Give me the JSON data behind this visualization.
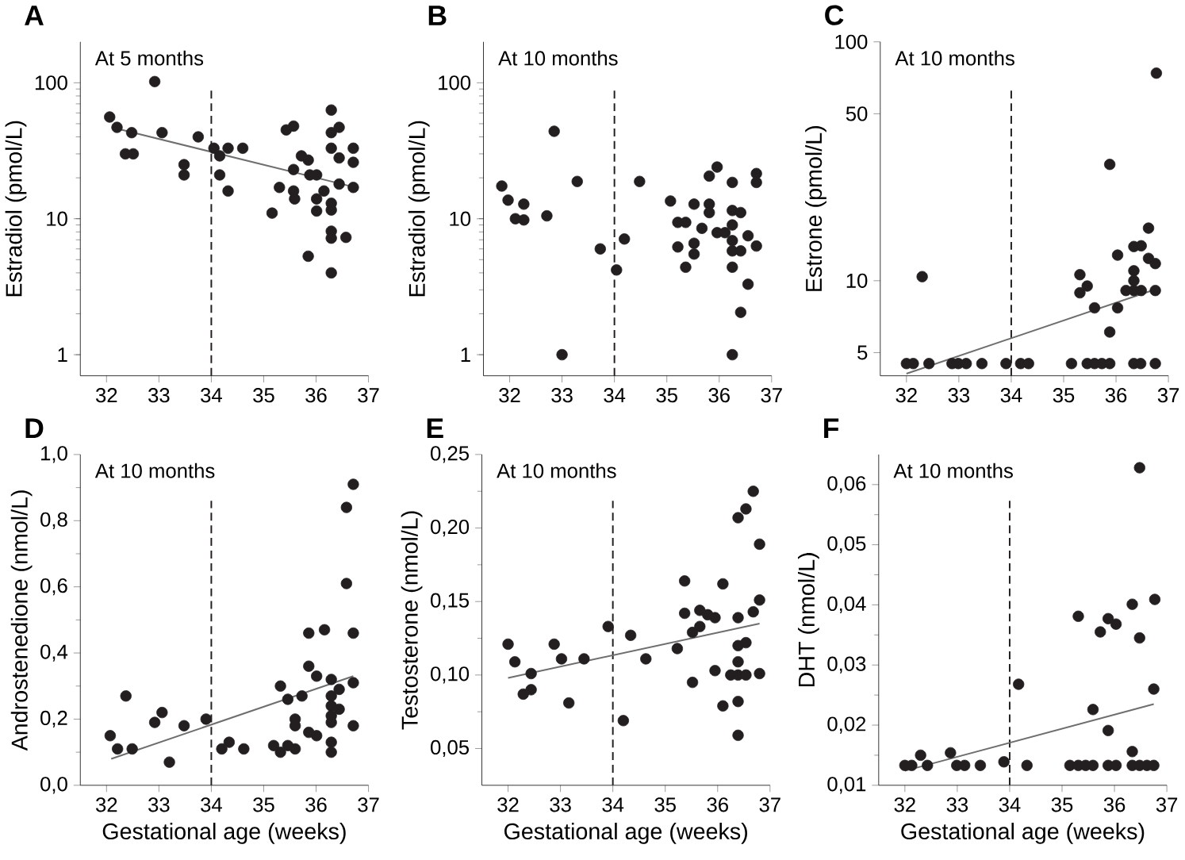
{
  "chart_data": [
    {
      "type": "scatter",
      "title": "A",
      "ylabel": "Estradiol (pmol/L)",
      "annotations": [
        "At 5 months"
      ],
      "log": "y",
      "marker": "circle",
      "xlim": [
        31.5,
        37
      ],
      "xticks": [
        32,
        33,
        34,
        35,
        36,
        37
      ],
      "ylim": [
        0.7,
        200
      ],
      "yticks": [
        1,
        10,
        100
      ],
      "ref_lines": [
        {
          "axis": "x",
          "value": 34,
          "line_style": "dashed",
          "color": "#231f20"
        }
      ],
      "series": [
        {
          "type": "scatter",
          "color": "#231f20",
          "x": [
            32.06,
            32.2,
            32.48,
            32.36,
            32.51,
            32.92,
            33.06,
            33.48,
            33.48,
            33.75,
            34.05,
            34.16,
            34.16,
            34.32,
            34.32,
            34.6,
            35.3,
            35.16,
            35.43,
            35.57,
            35.57,
            35.57,
            35.59,
            35.72,
            35.85,
            35.85,
            35.88,
            36.01,
            36.01,
            36.01,
            36.15,
            36.29,
            36.29,
            36.29,
            36.29,
            36.29,
            36.29,
            36.29,
            36.29,
            36.44,
            36.44,
            36.44,
            36.71,
            36.71,
            36.71,
            36.57
          ],
          "values": [
            56,
            47,
            43,
            30,
            30,
            102,
            43,
            25,
            21,
            40,
            33,
            29,
            21,
            33,
            16,
            33,
            17,
            11,
            45,
            48,
            23,
            16,
            14,
            29,
            27,
            5.3,
            21,
            21,
            14,
            11.4,
            16,
            63,
            43,
            33,
            13,
            11.6,
            8.1,
            7.2,
            4,
            47,
            28,
            18,
            33,
            26,
            17,
            7.3
          ]
        },
        {
          "type": "line",
          "marker": "none",
          "color": "#6e6e6e",
          "x": [
            32.1,
            36.7
          ],
          "values": [
            47,
            17.2
          ]
        }
      ]
    },
    {
      "type": "scatter",
      "title": "B",
      "ylabel": "Estradiol (pmol/L)",
      "annotations": [
        "At 10 months"
      ],
      "log": "y",
      "marker": "circle",
      "xlim": [
        31.5,
        37
      ],
      "xticks": [
        32,
        33,
        34,
        35,
        36,
        37
      ],
      "ylim": [
        0.7,
        200
      ],
      "yticks": [
        1,
        10,
        100
      ],
      "ref_lines": [
        {
          "axis": "x",
          "value": 34,
          "line_style": "dashed",
          "color": "#231f20"
        }
      ],
      "series": [
        {
          "type": "scatter",
          "color": "#231f20",
          "x": [
            31.85,
            31.97,
            32.11,
            32.27,
            32.27,
            32.71,
            32.85,
            33.0,
            33.29,
            33.73,
            34.04,
            34.19,
            34.48,
            35.07,
            35.21,
            35.21,
            35.36,
            35.36,
            35.52,
            35.52,
            35.52,
            35.67,
            35.81,
            35.81,
            35.81,
            35.96,
            35.96,
            36.11,
            36.25,
            36.25,
            36.25,
            36.25,
            36.25,
            36.25,
            36.25,
            36.41,
            36.41,
            36.41,
            36.55,
            36.55,
            36.71,
            36.71,
            36.71
          ],
          "values": [
            17.4,
            13.7,
            10,
            12.8,
            9.8,
            10.5,
            44,
            1,
            18.8,
            6,
            4.2,
            7.1,
            18.8,
            13.5,
            9.4,
            6.2,
            9.4,
            4.4,
            12.8,
            6.6,
            5.5,
            8.5,
            20.6,
            12.8,
            11.1,
            24,
            7.9,
            7.9,
            18.5,
            11.5,
            9,
            6.9,
            5.8,
            4.4,
            1,
            11.1,
            5.8,
            2.05,
            7.5,
            3.3,
            21.5,
            18.5,
            6.3
          ]
        }
      ]
    },
    {
      "type": "scatter",
      "title": "C",
      "ylabel": "Estrone (pmol/L)",
      "annotations": [
        "At 10 months"
      ],
      "log": "y",
      "marker": "circle",
      "xlim": [
        31.5,
        37
      ],
      "xticks": [
        32,
        33,
        34,
        35,
        36,
        37
      ],
      "ylim": [
        4,
        100
      ],
      "yticks": [
        5,
        10,
        50,
        100
      ],
      "ref_lines": [
        {
          "axis": "x",
          "value": 34,
          "line_style": "dashed",
          "color": "#231f20"
        }
      ],
      "series": [
        {
          "type": "scatter",
          "color": "#231f20",
          "x": [
            32.0,
            32.13,
            32.43,
            32.87,
            32.99,
            33.14,
            33.44,
            33.9,
            34.18,
            34.33,
            35.15,
            35.45,
            35.59,
            35.73,
            35.88,
            36.34,
            36.47,
            36.75,
            32.3,
            35.31,
            35.31,
            35.45,
            35.59,
            35.88,
            35.88,
            36.03,
            36.03,
            36.19,
            36.34,
            36.34,
            36.34,
            36.48,
            36.34,
            36.62,
            36.62,
            36.75,
            36.75,
            36.77,
            36.48
          ],
          "values": [
            4.5,
            4.5,
            4.5,
            4.5,
            4.5,
            4.5,
            4.5,
            4.5,
            4.5,
            4.5,
            4.5,
            4.5,
            4.5,
            4.5,
            4.5,
            4.5,
            4.5,
            4.5,
            10.4,
            10.6,
            8.9,
            9.5,
            7.7,
            30.7,
            6.1,
            12.8,
            7.7,
            9.1,
            11,
            10,
            13.9,
            14,
            9.1,
            16.6,
            12.4,
            11.8,
            9.1,
            74,
            9.1
          ]
        },
        {
          "type": "line",
          "marker": "none",
          "color": "#6e6e6e",
          "x": [
            32.0,
            36.75
          ],
          "values": [
            4.08,
            9.2
          ]
        }
      ]
    },
    {
      "type": "scatter",
      "title": "D",
      "xlabel": "Gestational age (weeks)",
      "ylabel": "Androstenedione (nmol/L)",
      "annotations": [
        "At 10 months"
      ],
      "marker": "circle",
      "xlim": [
        31.5,
        37
      ],
      "xticks": [
        32,
        33,
        34,
        35,
        36,
        37
      ],
      "ylim": [
        0,
        1
      ],
      "yticks": [
        {
          "value": 0,
          "label": "0,0"
        },
        {
          "value": 0.2,
          "label": "0,2"
        },
        {
          "value": 0.4,
          "label": "0,4"
        },
        {
          "value": 0.6,
          "label": "0,6"
        },
        {
          "value": 0.8,
          "label": "0,8"
        },
        {
          "value": 1,
          "label": "1,0"
        }
      ],
      "ref_lines": [
        {
          "axis": "x",
          "value": 34,
          "line_style": "dashed",
          "color": "#231f20"
        }
      ],
      "series": [
        {
          "type": "scatter",
          "color": "#231f20",
          "x": [
            32.07,
            32.21,
            32.37,
            32.49,
            32.92,
            33.06,
            33.2,
            33.48,
            33.9,
            34.2,
            34.34,
            34.62,
            35.19,
            35.32,
            35.32,
            35.46,
            35.46,
            35.6,
            35.6,
            35.6,
            35.73,
            35.86,
            35.86,
            35.86,
            36.01,
            36.01,
            36.16,
            36.29,
            36.29,
            36.29,
            36.29,
            36.29,
            36.29,
            36.29,
            36.44,
            36.44,
            36.58,
            36.58,
            36.71,
            36.71,
            36.71,
            36.71
          ],
          "values": [
            0.15,
            0.11,
            0.27,
            0.11,
            0.19,
            0.22,
            0.07,
            0.18,
            0.2,
            0.11,
            0.13,
            0.11,
            0.12,
            0.3,
            0.1,
            0.26,
            0.12,
            0.2,
            0.18,
            0.11,
            0.27,
            0.46,
            0.36,
            0.16,
            0.33,
            0.15,
            0.47,
            0.32,
            0.27,
            0.24,
            0.21,
            0.19,
            0.13,
            0.1,
            0.29,
            0.23,
            0.84,
            0.61,
            0.91,
            0.46,
            0.31,
            0.18
          ]
        },
        {
          "type": "line",
          "marker": "none",
          "color": "#6e6e6e",
          "x": [
            32.09,
            36.71
          ],
          "values": [
            0.08,
            0.33
          ]
        }
      ]
    },
    {
      "type": "scatter",
      "title": "E",
      "xlabel": "Gestational age (weeks)",
      "ylabel": "Testosterone (nmol/L)",
      "annotations": [
        "At 10 months"
      ],
      "marker": "circle",
      "xlim": [
        31.5,
        37
      ],
      "xticks": [
        32,
        33,
        34,
        35,
        36,
        37
      ],
      "ylim": [
        0.025,
        0.25
      ],
      "yticks": [
        {
          "value": 0.05,
          "label": "0,05"
        },
        {
          "value": 0.1,
          "label": "0,10"
        },
        {
          "value": 0.15,
          "label": "0,15"
        },
        {
          "value": 0.2,
          "label": "0,20"
        },
        {
          "value": 0.25,
          "label": "0,25"
        }
      ],
      "ref_lines": [
        {
          "axis": "x",
          "value": 34,
          "line_style": "dashed",
          "color": "#231f20"
        }
      ],
      "series": [
        {
          "type": "scatter",
          "color": "#231f20",
          "x": [
            32.0,
            32.13,
            32.29,
            32.44,
            32.44,
            32.88,
            33.02,
            33.16,
            33.45,
            33.91,
            34.2,
            34.34,
            34.63,
            35.23,
            35.37,
            35.37,
            35.52,
            35.66,
            35.66,
            35.81,
            35.95,
            35.95,
            35.52,
            36.1,
            36.1,
            36.25,
            36.39,
            36.39,
            36.39,
            36.39,
            36.39,
            36.39,
            36.39,
            36.54,
            36.54,
            36.54,
            36.68,
            36.68,
            36.8,
            36.8,
            36.8
          ],
          "values": [
            0.121,
            0.109,
            0.087,
            0.101,
            0.09,
            0.121,
            0.111,
            0.081,
            0.111,
            0.133,
            0.069,
            0.127,
            0.111,
            0.118,
            0.164,
            0.142,
            0.129,
            0.144,
            0.133,
            0.141,
            0.139,
            0.103,
            0.095,
            0.162,
            0.079,
            0.1,
            0.207,
            0.139,
            0.12,
            0.109,
            0.1,
            0.082,
            0.059,
            0.213,
            0.122,
            0.1,
            0.143,
            0.225,
            0.189,
            0.151,
            0.101
          ]
        },
        {
          "type": "line",
          "marker": "none",
          "color": "#6e6e6e",
          "x": [
            32.0,
            36.8
          ],
          "values": [
            0.098,
            0.135
          ]
        }
      ]
    },
    {
      "type": "scatter",
      "title": "F",
      "xlabel": "Gestational age (weeks)",
      "ylabel": "DHT (nmol/L)",
      "annotations": [
        "At 10 months"
      ],
      "marker": "circle",
      "xlim": [
        31.5,
        37
      ],
      "xticks": [
        32,
        33,
        34,
        35,
        36,
        37
      ],
      "ylim": [
        0.01,
        0.065
      ],
      "yticks": [
        {
          "value": 0.01,
          "label": "0,01"
        },
        {
          "value": 0.02,
          "label": "0,02"
        },
        {
          "value": 0.03,
          "label": "0,03"
        },
        {
          "value": 0.04,
          "label": "0,04"
        },
        {
          "value": 0.05,
          "label": "0,05"
        },
        {
          "value": 0.06,
          "label": "0,06"
        }
      ],
      "ref_lines": [
        {
          "axis": "x",
          "value": 34,
          "line_style": "dashed",
          "color": "#231f20"
        }
      ],
      "series": [
        {
          "type": "scatter",
          "color": "#231f20",
          "x": [
            32.0,
            32.13,
            32.43,
            32.99,
            33.14,
            33.44,
            34.33,
            35.15,
            35.31,
            35.45,
            35.59,
            35.88,
            36.03,
            36.34,
            36.48,
            36.62,
            36.75,
            32.3,
            32.87,
            33.89,
            34.17,
            35.31,
            35.59,
            35.73,
            35.88,
            35.88,
            36.03,
            36.34,
            36.34,
            36.48,
            36.48,
            36.77,
            36.75
          ],
          "values": [
            0.0133,
            0.0133,
            0.0133,
            0.0133,
            0.0133,
            0.0133,
            0.0133,
            0.0133,
            0.0133,
            0.0133,
            0.0133,
            0.0133,
            0.0133,
            0.0133,
            0.0133,
            0.0133,
            0.0133,
            0.015,
            0.0154,
            0.0139,
            0.0268,
            0.0381,
            0.0226,
            0.0355,
            0.0377,
            0.0191,
            0.0368,
            0.0401,
            0.0156,
            0.0345,
            0.0628,
            0.0409,
            0.026
          ]
        },
        {
          "type": "line",
          "marker": "none",
          "color": "#6e6e6e",
          "x": [
            32.0,
            36.75
          ],
          "values": [
            0.0124,
            0.0235
          ]
        }
      ]
    }
  ]
}
